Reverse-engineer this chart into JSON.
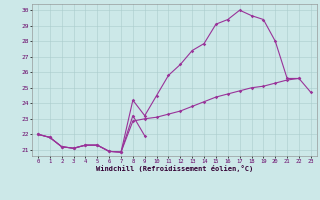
{
  "xlabel": "Windchill (Refroidissement éolien,°C)",
  "background_color": "#cce8e8",
  "grid_color": "#aacccc",
  "line_color": "#993399",
  "xlim": [
    -0.5,
    23.5
  ],
  "ylim": [
    20.6,
    30.4
  ],
  "xticks": [
    0,
    1,
    2,
    3,
    4,
    5,
    6,
    7,
    8,
    9,
    10,
    11,
    12,
    13,
    14,
    15,
    16,
    17,
    18,
    19,
    20,
    21,
    22,
    23
  ],
  "yticks": [
    21,
    22,
    23,
    24,
    25,
    26,
    27,
    28,
    29,
    30
  ],
  "hours": [
    0,
    1,
    2,
    3,
    4,
    5,
    6,
    7,
    8,
    9,
    10,
    11,
    12,
    13,
    14,
    15,
    16,
    17,
    18,
    19,
    20,
    21,
    22,
    23
  ],
  "line_top": [
    22.0,
    21.8,
    21.2,
    21.1,
    21.3,
    21.3,
    20.9,
    20.85,
    24.2,
    23.2,
    24.5,
    25.8,
    26.5,
    27.4,
    27.85,
    29.1,
    29.4,
    30.0,
    29.65,
    29.4,
    28.0,
    25.6,
    25.6,
    null
  ],
  "line_mid": [
    22.0,
    21.8,
    21.2,
    21.1,
    21.3,
    21.3,
    20.9,
    20.85,
    22.85,
    23.0,
    23.1,
    23.3,
    23.5,
    23.8,
    24.1,
    24.4,
    24.6,
    24.8,
    25.0,
    25.1,
    25.3,
    25.5,
    25.6,
    24.7
  ],
  "line_bot": [
    22.0,
    21.8,
    21.2,
    21.1,
    21.3,
    21.3,
    20.9,
    20.85,
    23.2,
    21.9,
    null,
    null,
    null,
    null,
    null,
    null,
    null,
    null,
    null,
    null,
    null,
    null,
    null,
    null
  ]
}
